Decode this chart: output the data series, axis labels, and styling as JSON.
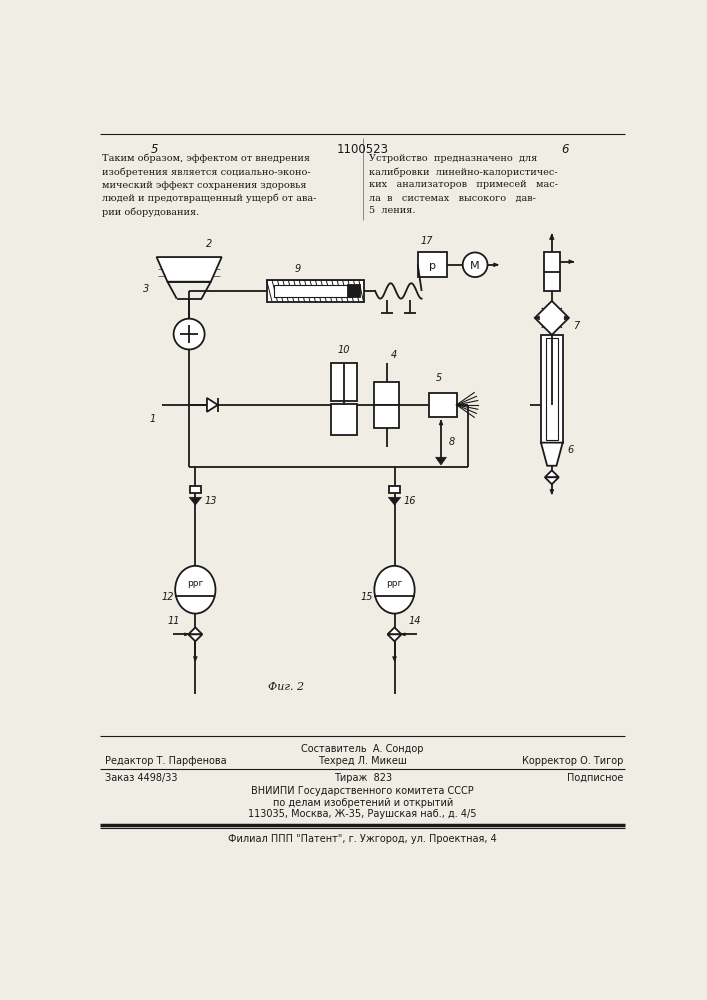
{
  "bg_color": "#f0ede4",
  "title_number": "1100523",
  "page_left": "5",
  "page_right": "6",
  "top_text_left": "Таким образом, эффектом от внедрения\nизобретения является социально-эконо-\nмический эффект сохранения здоровья\nлюдей и предотвращенный ущерб от ава-\nрии оборудования.",
  "top_text_right": "Устройство  предназначено  для\nкалибровки  линейно-калористичес-\nких   анализаторов   примесей   мас-\nла  в   системах   высокого   дав-\n5  ления.",
  "fig_caption": "Фиг. 2",
  "bottom_line1": "Составитель  А. Сондор",
  "bottom_line2_left": "Редактор Т. Парфенова",
  "bottom_line2_mid": "Техред Л. Микеш",
  "bottom_line2_right": "Корректор О. Тигор",
  "bottom_line3_left": "Заказ 4498/33",
  "bottom_line3_mid": "Тираж  823",
  "bottom_line3_right": "Подписное",
  "bottom_line4": "ВНИИПИ Государственного комитета СССР",
  "bottom_line5": "по делам изобретений и открытий",
  "bottom_line6": "113035, Москва, Ж-35, Раушская наб., д. 4/5",
  "bottom_line7": "Филиал ППП \"Патент\", г. Ужгород, ул. Проектная, 4"
}
